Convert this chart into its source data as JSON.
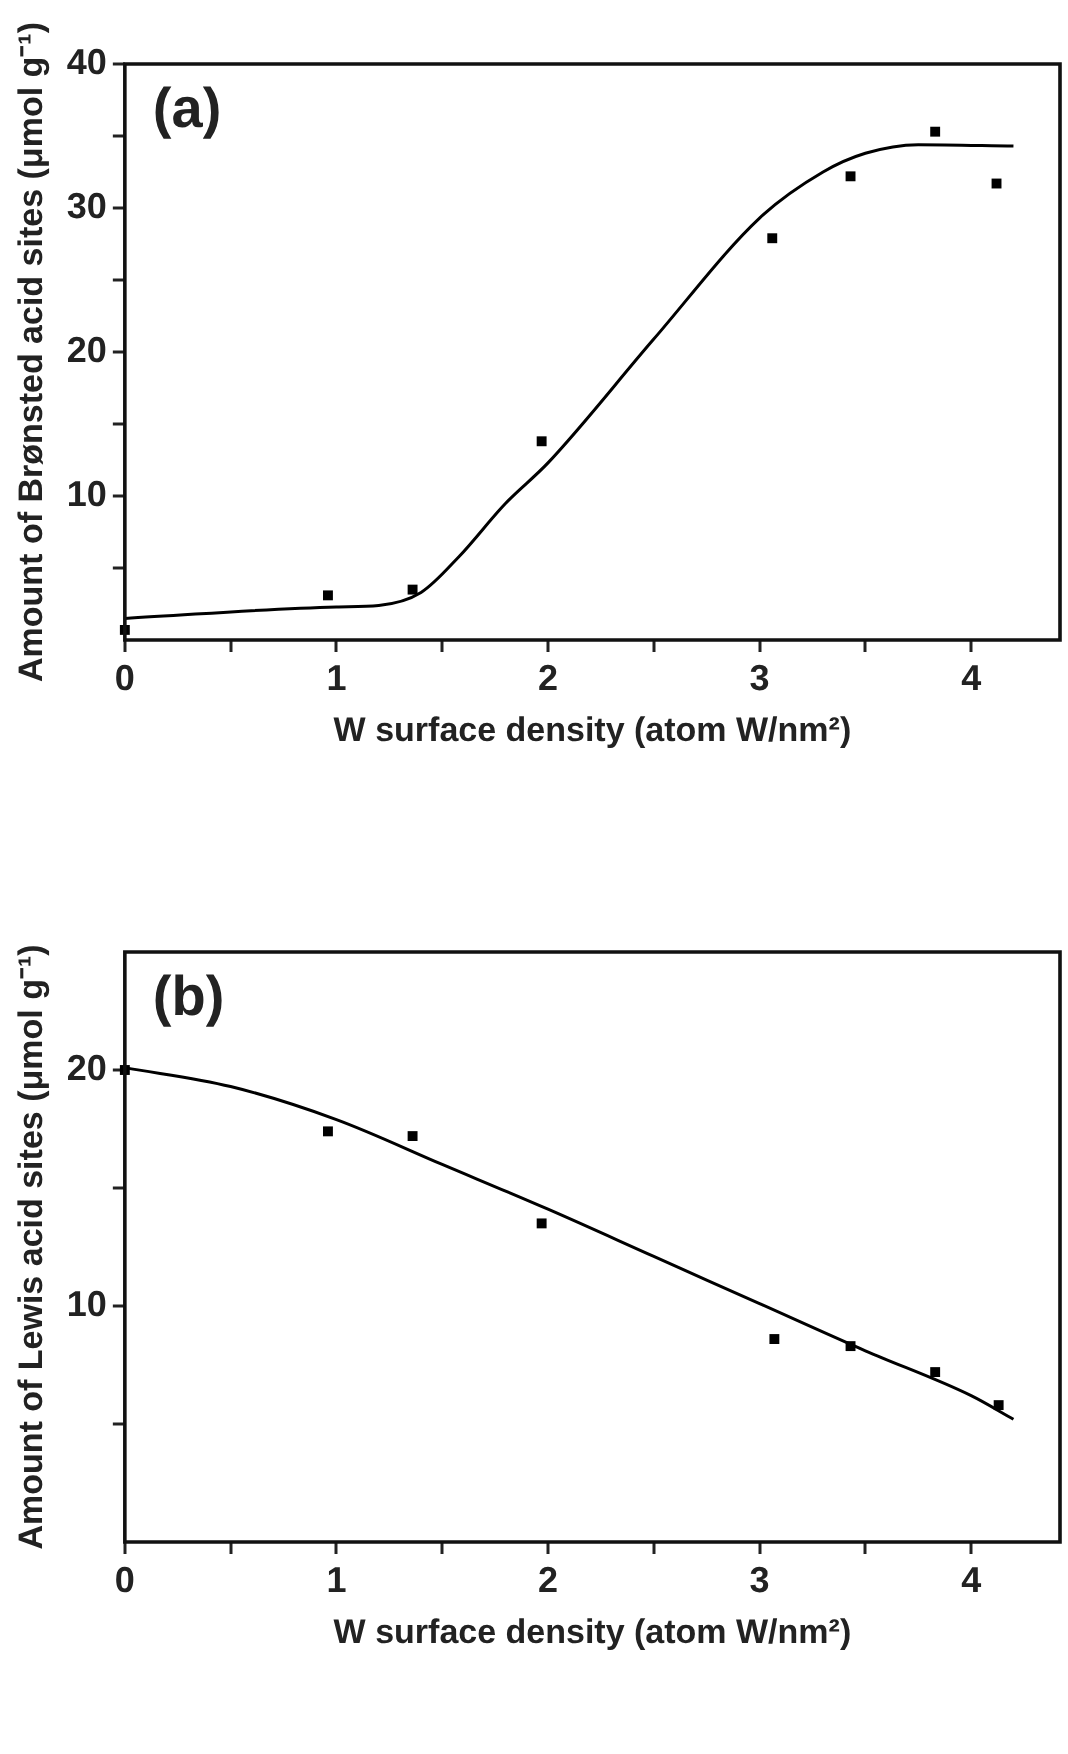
{
  "chart_data": [
    {
      "type": "scatter",
      "title": "(a)",
      "xlabel": "W surface density (atom W/nm²)",
      "ylabel": "Amount of Brønsted acid sites (μmol g⁻¹)",
      "xlim": [
        0,
        4.42
      ],
      "ylim": [
        0,
        40
      ],
      "xticks": [
        0,
        {
          "value": 0.5,
          "label": null
        },
        1,
        {
          "value": 1.5,
          "label": null
        },
        2,
        {
          "value": 2.5,
          "label": null
        },
        3,
        {
          "value": 3.5,
          "label": null
        },
        4
      ],
      "yticks": [
        {
          "value": 5,
          "label": null
        },
        10,
        {
          "value": 15,
          "label": null
        },
        20,
        {
          "value": 25,
          "label": null
        },
        30,
        {
          "value": 35,
          "label": null
        },
        40
      ],
      "grid": false,
      "legend": false,
      "series": [
        {
          "type": "scatter",
          "marker": "square",
          "color": "#000000",
          "x": [
            0,
            0.96,
            1.36,
            1.97,
            3.06,
            3.43,
            3.83,
            4.12
          ],
          "values": [
            0.7,
            3.1,
            3.5,
            13.8,
            27.9,
            32.2,
            35.3,
            31.7
          ]
        },
        {
          "type": "line",
          "marker": "none",
          "line_style": "solid",
          "color": "#000000",
          "x": [
            0,
            1,
            1.2,
            1.4,
            1.58,
            1.8,
            2,
            2.5,
            3,
            3.3,
            3.5,
            3.75,
            4.2
          ],
          "values": [
            1.5,
            2.3,
            2.4,
            3.3,
            5.8,
            9.5,
            12.3,
            20.9,
            29.3,
            32.5,
            33.8,
            34.4,
            34.3
          ]
        }
      ]
    },
    {
      "type": "scatter",
      "title": "(b)",
      "xlabel": "W surface density (atom W/nm²)",
      "ylabel": "Amount of Lewis acid sites (μmol g⁻¹)",
      "xlim": [
        0,
        4.42
      ],
      "ylim": [
        0,
        25
      ],
      "xticks": [
        0,
        {
          "value": 0.5,
          "label": null
        },
        1,
        {
          "value": 1.5,
          "label": null
        },
        2,
        {
          "value": 2.5,
          "label": null
        },
        3,
        {
          "value": 3.5,
          "label": null
        },
        4
      ],
      "yticks": [
        {
          "value": 5,
          "label": null
        },
        10,
        {
          "value": 15,
          "label": null
        },
        20
      ],
      "grid": false,
      "legend": false,
      "series": [
        {
          "type": "scatter",
          "marker": "square",
          "color": "#000000",
          "x": [
            0,
            0.96,
            1.36,
            1.97,
            3.07,
            3.43,
            3.83,
            4.13
          ],
          "values": [
            20.0,
            17.4,
            17.2,
            13.5,
            8.6,
            8.3,
            7.2,
            5.8
          ]
        },
        {
          "type": "line",
          "marker": "none",
          "line_style": "solid",
          "color": "#000000",
          "x": [
            0,
            0.5,
            1,
            1.5,
            2,
            2.5,
            3,
            3.5,
            4,
            4.2
          ],
          "values": [
            20.1,
            19.3,
            17.9,
            16.0,
            14.1,
            12.1,
            10.1,
            8.1,
            6.2,
            5.2
          ]
        }
      ]
    }
  ]
}
